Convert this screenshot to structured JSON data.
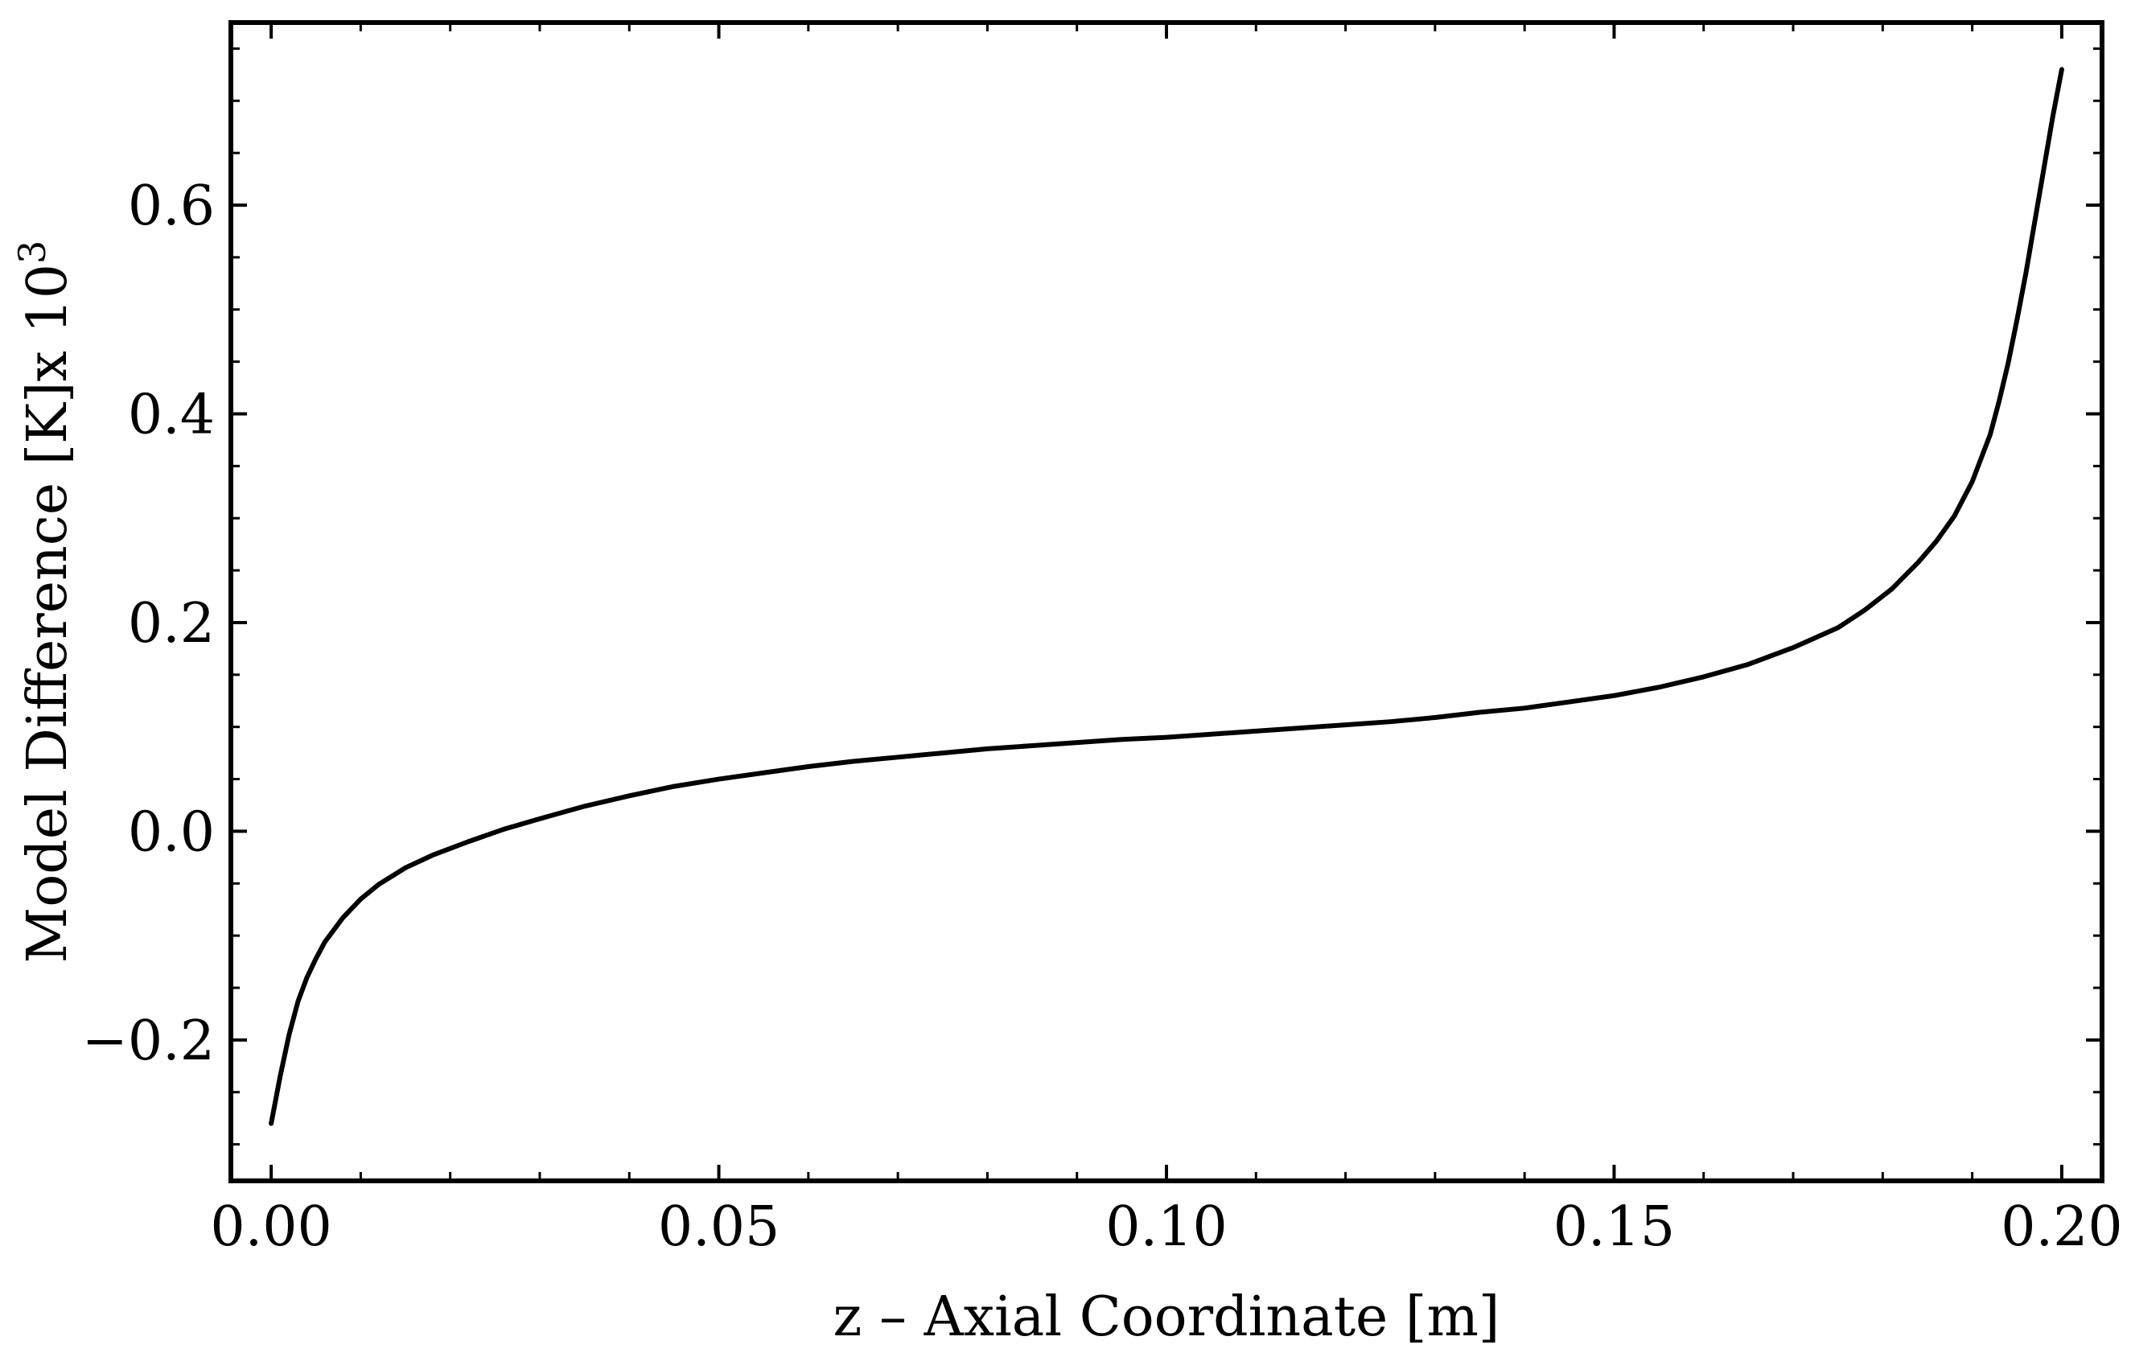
{
  "chart_data": {
    "type": "line",
    "title": "",
    "xlabel": "z – Axial Coordinate [m]",
    "ylabel": {
      "main": "Model Difference [K]x 10",
      "exponent": "3"
    },
    "xlim": [
      -0.0045,
      0.2045
    ],
    "ylim": [
      -0.335,
      0.775
    ],
    "x_ticks": [
      {
        "value": 0.0,
        "label": "0.00"
      },
      {
        "value": 0.05,
        "label": "0.05"
      },
      {
        "value": 0.1,
        "label": "0.10"
      },
      {
        "value": 0.15,
        "label": "0.15"
      },
      {
        "value": 0.2,
        "label": "0.20"
      }
    ],
    "y_ticks": [
      {
        "value": -0.2,
        "label": "−0.2"
      },
      {
        "value": 0.0,
        "label": "0.0"
      },
      {
        "value": 0.2,
        "label": "0.2"
      },
      {
        "value": 0.4,
        "label": "0.4"
      },
      {
        "value": 0.6,
        "label": "0.6"
      }
    ],
    "x_minor_step": 0.01,
    "y_minor_step": 0.05,
    "grid": false,
    "frame": true,
    "series": [
      {
        "color": "#000000",
        "x": [
          0.0,
          0.001,
          0.002,
          0.003,
          0.004,
          0.005,
          0.006,
          0.008,
          0.01,
          0.012,
          0.015,
          0.018,
          0.022,
          0.026,
          0.03,
          0.035,
          0.04,
          0.045,
          0.05,
          0.055,
          0.06,
          0.065,
          0.07,
          0.075,
          0.08,
          0.085,
          0.09,
          0.095,
          0.1,
          0.105,
          0.11,
          0.115,
          0.12,
          0.125,
          0.13,
          0.135,
          0.14,
          0.145,
          0.15,
          0.155,
          0.16,
          0.165,
          0.17,
          0.175,
          0.178,
          0.181,
          0.184,
          0.186,
          0.188,
          0.19,
          0.192,
          0.193,
          0.194,
          0.195,
          0.196,
          0.197,
          0.198,
          0.199,
          0.2
        ],
        "y": [
          -0.28,
          -0.235,
          -0.195,
          -0.163,
          -0.14,
          -0.122,
          -0.106,
          -0.083,
          -0.065,
          -0.051,
          -0.035,
          -0.023,
          -0.01,
          0.002,
          0.012,
          0.024,
          0.034,
          0.043,
          0.05,
          0.056,
          0.062,
          0.067,
          0.071,
          0.075,
          0.079,
          0.082,
          0.085,
          0.088,
          0.09,
          0.093,
          0.096,
          0.099,
          0.102,
          0.105,
          0.109,
          0.114,
          0.118,
          0.124,
          0.13,
          0.138,
          0.148,
          0.16,
          0.176,
          0.195,
          0.212,
          0.232,
          0.258,
          0.278,
          0.302,
          0.335,
          0.38,
          0.412,
          0.448,
          0.49,
          0.535,
          0.585,
          0.635,
          0.685,
          0.73
        ]
      }
    ]
  }
}
